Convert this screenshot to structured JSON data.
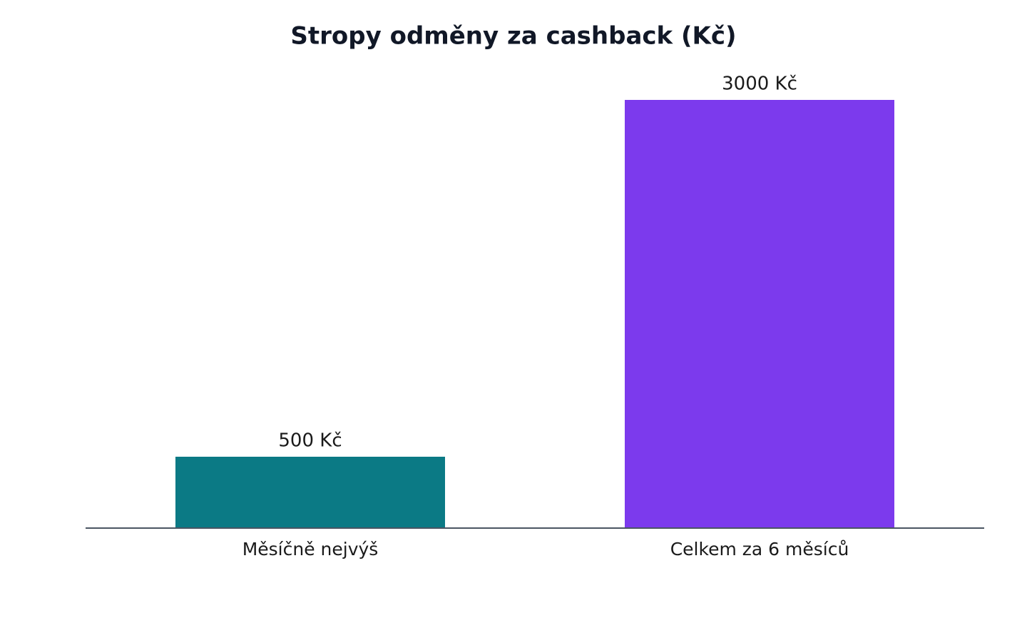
{
  "chart_data": {
    "type": "bar",
    "title": "Stropy odměny za cashback (Kč)",
    "categories": [
      "Měsíčně nejvýš",
      "Celkem za 6 měsíců"
    ],
    "values": [
      500,
      3000
    ],
    "value_labels": [
      "500 Kč",
      "3000 Kč"
    ],
    "colors": [
      "#0b7a85",
      "#7c3aed"
    ],
    "ylim": [
      0,
      3000
    ]
  }
}
